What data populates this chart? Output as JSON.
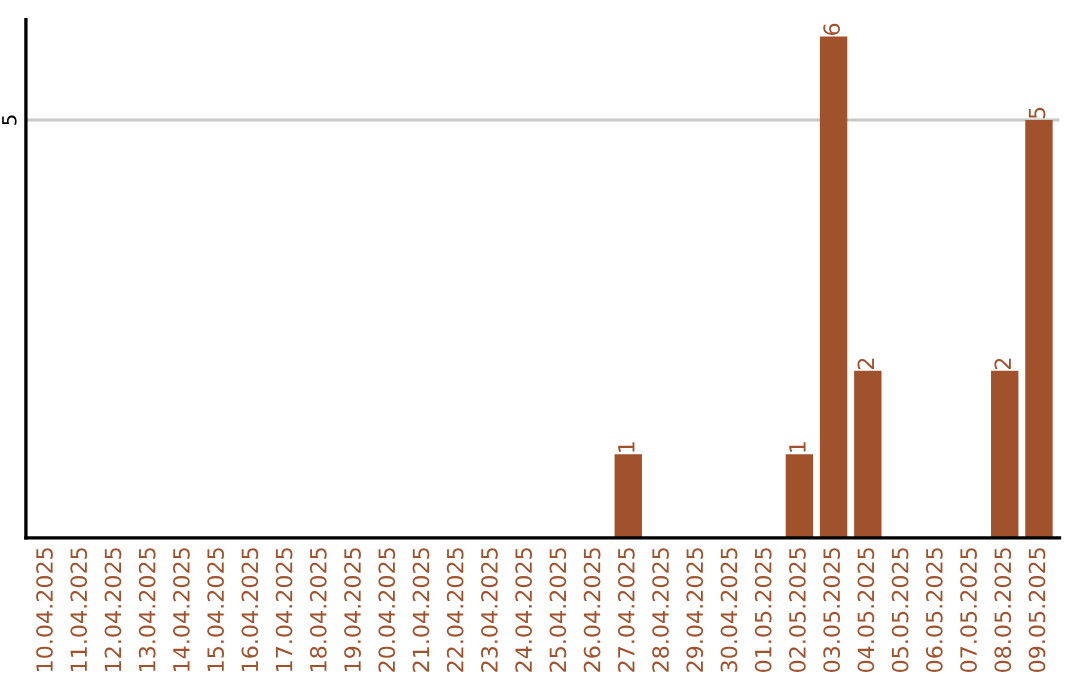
{
  "chart_data": {
    "type": "bar",
    "categories": [
      "10.04.2025",
      "11.04.2025",
      "12.04.2025",
      "13.04.2025",
      "14.04.2025",
      "15.04.2025",
      "16.04.2025",
      "17.04.2025",
      "18.04.2025",
      "19.04.2025",
      "20.04.2025",
      "21.04.2025",
      "22.04.2025",
      "23.04.2025",
      "24.04.2025",
      "25.04.2025",
      "26.04.2025",
      "27.04.2025",
      "28.04.2025",
      "29.04.2025",
      "30.04.2025",
      "01.05.2025",
      "02.05.2025",
      "03.05.2025",
      "04.05.2025",
      "05.05.2025",
      "06.05.2025",
      "07.05.2025",
      "08.05.2025",
      "09.05.2025"
    ],
    "values": [
      null,
      null,
      null,
      null,
      null,
      null,
      null,
      null,
      null,
      null,
      null,
      null,
      null,
      null,
      null,
      null,
      null,
      1,
      null,
      null,
      null,
      null,
      1,
      6,
      2,
      null,
      null,
      null,
      2,
      5
    ],
    "data_labels": true,
    "color": "#a0522d",
    "ylim": [
      0,
      6.2
    ],
    "yticks": [
      5
    ],
    "grid": "y"
  }
}
